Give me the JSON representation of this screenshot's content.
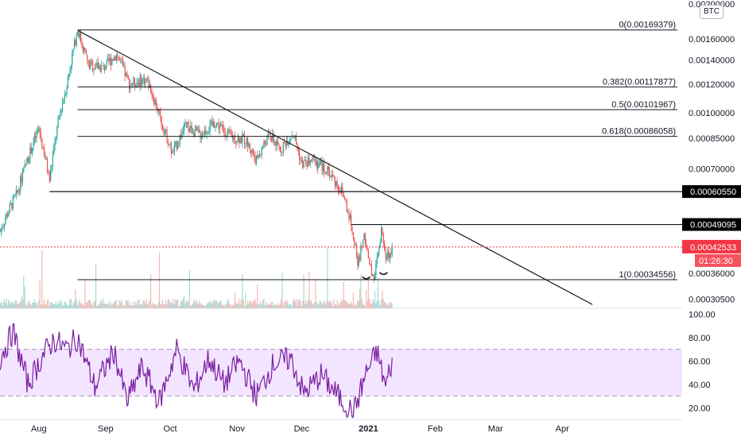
{
  "currency": "BTC",
  "colors": {
    "up": "#26a69a",
    "down": "#ef5350",
    "rsi": "#7b1fa2",
    "rsi_band": "#f3e5ff",
    "line": "#131722",
    "price_tag": "#f23645"
  },
  "chart_data": [
    {
      "type": "candlestick",
      "title": "",
      "y_scale": "log",
      "ylim": [
        0.000288,
        0.00205
      ],
      "x": [
        "Aug",
        "Sep",
        "Oct",
        "Nov",
        "Dec",
        "2021",
        "Feb",
        "Mar",
        "Apr"
      ],
      "y_ticks": [
        "0.00200000",
        "0.00160000",
        "0.00140000",
        "0.00120000",
        "0.00100000",
        "0.00085000",
        "0.00070000",
        "0.00036000",
        "0.00030500"
      ],
      "anchor_points": [
        {
          "date": "2020-07-14",
          "close": 0.00047
        },
        {
          "date": "2020-07-22",
          "close": 0.0006
        },
        {
          "date": "2020-08-01",
          "close": 0.0009
        },
        {
          "date": "2020-08-06",
          "close": 0.00065
        },
        {
          "date": "2020-08-11",
          "close": 0.00101
        },
        {
          "date": "2020-08-14",
          "close": 0.00119
        },
        {
          "date": "2020-08-19",
          "close": 0.00169
        },
        {
          "date": "2020-08-24",
          "close": 0.00136
        },
        {
          "date": "2020-08-31",
          "close": 0.00133
        },
        {
          "date": "2020-09-06",
          "close": 0.00145
        },
        {
          "date": "2020-09-12",
          "close": 0.0012
        },
        {
          "date": "2020-09-20",
          "close": 0.00124
        },
        {
          "date": "2020-09-27",
          "close": 0.00094
        },
        {
          "date": "2020-10-02",
          "close": 0.00077
        },
        {
          "date": "2020-10-08",
          "close": 0.00092
        },
        {
          "date": "2020-10-15",
          "close": 0.00087
        },
        {
          "date": "2020-10-22",
          "close": 0.00094
        },
        {
          "date": "2020-10-29",
          "close": 0.00086
        },
        {
          "date": "2020-11-05",
          "close": 0.00084
        },
        {
          "date": "2020-11-10",
          "close": 0.00074
        },
        {
          "date": "2020-11-16",
          "close": 0.00087
        },
        {
          "date": "2020-11-21",
          "close": 0.00079
        },
        {
          "date": "2020-11-27",
          "close": 0.00088
        },
        {
          "date": "2020-12-01",
          "close": 0.00072
        },
        {
          "date": "2020-12-07",
          "close": 0.00074
        },
        {
          "date": "2020-12-14",
          "close": 0.00068
        },
        {
          "date": "2020-12-20",
          "close": 0.0006
        },
        {
          "date": "2020-12-24",
          "close": 0.0005
        },
        {
          "date": "2020-12-27",
          "close": 0.00038
        },
        {
          "date": "2020-12-30",
          "close": 0.00046
        },
        {
          "date": "2021-01-02",
          "close": 0.00037
        },
        {
          "date": "2021-01-04",
          "close": 0.00035
        },
        {
          "date": "2021-01-07",
          "close": 0.00047
        },
        {
          "date": "2021-01-09",
          "close": 0.00039
        },
        {
          "date": "2021-01-12",
          "close": 0.000425
        }
      ],
      "fib_levels": [
        {
          "label": "0(0.00169379)",
          "value": 0.00169379
        },
        {
          "label": "0.382(0.00117877)",
          "value": 0.00117877
        },
        {
          "label": "0.5(0.00101967)",
          "value": 0.00101967
        },
        {
          "label": "0.618(0.00086058)",
          "value": 0.00086058
        },
        {
          "label": "1(0.00034556)",
          "value": 0.00034556
        }
      ],
      "horizontal_levels": [
        {
          "label": "0.00060550",
          "value": 0.0006055
        },
        {
          "label": "0.00049095",
          "value": 0.00049095
        }
      ],
      "current_price": {
        "label": "0.00042533",
        "value": 0.00042533,
        "countdown": "01:26:30"
      },
      "trendline": [
        {
          "date": "2020-08-19",
          "value": 0.00169
        },
        {
          "date": "2021-04-15",
          "value": 0.000295
        }
      ]
    },
    {
      "type": "line",
      "title": "",
      "ylim": [
        10,
        105
      ],
      "y_ticks": [
        "100.00",
        "80.00",
        "60.00",
        "40.00",
        "20.00"
      ],
      "band": [
        30,
        70
      ],
      "anchor_points": [
        {
          "date": "2020-07-14",
          "value": 62
        },
        {
          "date": "2020-07-20",
          "value": 85
        },
        {
          "date": "2020-07-27",
          "value": 40
        },
        {
          "date": "2020-08-03",
          "value": 65
        },
        {
          "date": "2020-08-08",
          "value": 78
        },
        {
          "date": "2020-08-14",
          "value": 70
        },
        {
          "date": "2020-08-19",
          "value": 80
        },
        {
          "date": "2020-08-27",
          "value": 38
        },
        {
          "date": "2020-09-05",
          "value": 68
        },
        {
          "date": "2020-09-11",
          "value": 25
        },
        {
          "date": "2020-09-18",
          "value": 55
        },
        {
          "date": "2020-09-26",
          "value": 25
        },
        {
          "date": "2020-10-04",
          "value": 70
        },
        {
          "date": "2020-10-12",
          "value": 35
        },
        {
          "date": "2020-10-19",
          "value": 62
        },
        {
          "date": "2020-10-26",
          "value": 40
        },
        {
          "date": "2020-11-02",
          "value": 60
        },
        {
          "date": "2020-11-10",
          "value": 30
        },
        {
          "date": "2020-11-18",
          "value": 58
        },
        {
          "date": "2020-11-26",
          "value": 62
        },
        {
          "date": "2020-12-02",
          "value": 32
        },
        {
          "date": "2020-12-10",
          "value": 48
        },
        {
          "date": "2020-12-18",
          "value": 30
        },
        {
          "date": "2020-12-25",
          "value": 15
        },
        {
          "date": "2020-12-31",
          "value": 50
        },
        {
          "date": "2021-01-05",
          "value": 68
        },
        {
          "date": "2021-01-09",
          "value": 38
        },
        {
          "date": "2021-01-12",
          "value": 60
        }
      ]
    }
  ]
}
